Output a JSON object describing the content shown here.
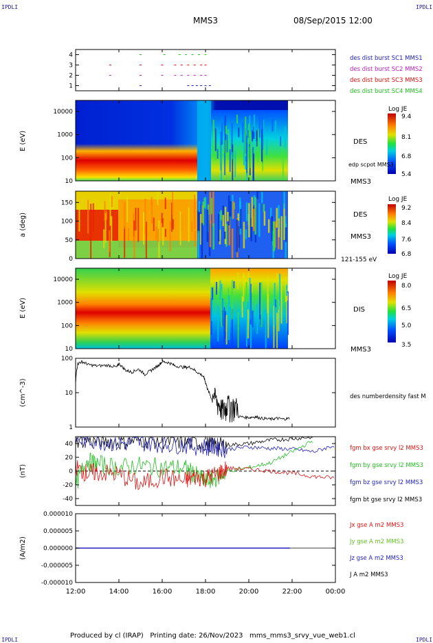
{
  "header": {
    "corner_left": "IPDLI",
    "corner_right": "IPDLI",
    "mission": "MMS3",
    "date": "08/Sep/2015 12:00"
  },
  "footer": {
    "corner_left": "IPDLI",
    "corner_right": "IPDLI",
    "text": "Produced by cl (IRAP)   Printing date: 26/Nov/2023   mms_mms3_srvy_vue_web1.cl"
  },
  "x_axis": {
    "ticks": [
      "12:00",
      "14:00",
      "16:00",
      "18:00",
      "20:00",
      "22:00",
      "00:00"
    ],
    "start_hour": 12,
    "end_hour": 24
  },
  "colors": {
    "blue": "#2020c0",
    "magenta": "#c020c0",
    "red": "#e01010",
    "green": "#20c020",
    "black": "#000000"
  },
  "chart_data": [
    {
      "type": "scatter",
      "panel": "burst",
      "yticks": [
        "1",
        "2",
        "3",
        "4"
      ],
      "ylim": [
        0.5,
        4.5
      ],
      "legend": [
        "des dist burst SC1 MMS1",
        "des dist burst SC2 MMS2",
        "des dist burst SC3 MMS3",
        "des dist burst SC4 MMS4"
      ],
      "series": [
        {
          "level": 1,
          "times": [
            15.0,
            17.2,
            17.4,
            17.6,
            17.8,
            18.0,
            18.2
          ]
        },
        {
          "level": 2,
          "times": [
            13.6,
            15.0,
            16.0,
            16.6,
            16.9,
            17.2,
            17.5,
            17.8,
            18.0
          ]
        },
        {
          "level": 3,
          "times": [
            13.6,
            15.0,
            16.0,
            16.6,
            16.9,
            17.2,
            17.5,
            17.8,
            18.0
          ]
        },
        {
          "level": 4,
          "times": [
            15.0,
            16.1,
            16.8,
            17.1,
            17.4,
            17.7,
            18.0
          ]
        }
      ]
    },
    {
      "type": "heatmap",
      "panel": "des_energy",
      "ylabel": "E (eV)",
      "yticks": [
        "10",
        "100",
        "1000",
        "10000"
      ],
      "ylim": [
        10,
        30000
      ],
      "scale": "log",
      "label": "DES",
      "label2": "MMS3",
      "note": "edp scpot MMS3",
      "colorbar_title": "Log JE",
      "colorbar_ticks": [
        "9.4",
        "8.1",
        "6.8",
        "5.4"
      ],
      "data_end_hour": 21.9
    },
    {
      "type": "heatmap",
      "panel": "des_pitch",
      "ylabel": "a (deg)",
      "yticks": [
        "0",
        "50",
        "100",
        "150"
      ],
      "ylim": [
        0,
        180
      ],
      "label": "DES",
      "label2": "MMS3",
      "note": "121-155 eV",
      "colorbar_title": "Log JE",
      "colorbar_ticks": [
        "9.2",
        "8.4",
        "7.6",
        "6.8"
      ],
      "data_end_hour": 21.9
    },
    {
      "type": "heatmap",
      "panel": "dis_energy",
      "ylabel": "E (eV)",
      "yticks": [
        "10",
        "100",
        "1000",
        "10000"
      ],
      "ylim": [
        10,
        30000
      ],
      "scale": "log",
      "label": "DIS",
      "label2": "MMS3",
      "colorbar_title": "Log JE",
      "colorbar_ticks": [
        "8.0",
        "6.5",
        "5.0",
        "3.5"
      ],
      "data_end_hour": 21.9
    },
    {
      "type": "line",
      "panel": "density",
      "ylabel": "(cm^-3)",
      "yticks": [
        "1",
        "10",
        "100"
      ],
      "ylim": [
        1,
        100
      ],
      "scale": "log",
      "legend": [
        "des numberdensity fast M"
      ],
      "x": [
        12.0,
        12.1,
        12.3,
        12.6,
        13.0,
        13.5,
        13.9,
        14.0,
        14.3,
        14.6,
        14.9,
        15.2,
        15.5,
        15.8,
        16.0,
        16.3,
        16.6,
        17.0,
        17.3,
        17.6,
        17.9,
        18.0,
        18.1,
        18.3,
        18.5,
        18.7,
        18.9,
        19.0,
        19.3,
        19.6,
        20.0,
        20.3,
        20.6,
        21.0,
        21.3,
        21.6,
        21.9
      ],
      "y": [
        18,
        70,
        80,
        65,
        60,
        63,
        55,
        70,
        45,
        40,
        48,
        34,
        45,
        60,
        80,
        75,
        60,
        55,
        55,
        40,
        30,
        20,
        12,
        6,
        3,
        2,
        1.6,
        2.5,
        2.2,
        2,
        1.9,
        2,
        1.8,
        1.7,
        1.8,
        1.7,
        1.8
      ]
    },
    {
      "type": "line",
      "panel": "fgm",
      "ylabel": "(nT)",
      "yticks": [
        "-40",
        "-20",
        "0",
        "20",
        "40"
      ],
      "ylim": [
        -50,
        50
      ],
      "legend": [
        "fgm bx gse srvy l2 MMS3",
        "fgm by gse srvy l2 MMS3",
        "fgm bz gse srvy l2 MMS3",
        "fgm bt gse srvy l2 MMS3"
      ],
      "series": [
        {
          "name": "fgm bx gse srvy l2 MMS3",
          "x": [
            12.0,
            12.5,
            13.0,
            14.0,
            15.0,
            16.0,
            17.0,
            17.5,
            18.0,
            18.5,
            19.0,
            20.0,
            21.0,
            22.0,
            23.0,
            24.0
          ],
          "y": [
            5,
            -3,
            -2,
            -5,
            -20,
            -8,
            -15,
            -8,
            -10,
            -5,
            4,
            3,
            0,
            -3,
            -8,
            -10
          ]
        },
        {
          "name": "fgm by gse srvy l2 MMS3",
          "x": [
            12.0,
            12.5,
            13.0,
            14.0,
            15.0,
            16.0,
            17.0,
            17.5,
            18.0,
            18.5,
            19.0,
            20.0,
            21.0,
            22.0,
            23.0
          ],
          "y": [
            -20,
            15,
            10,
            5,
            8,
            5,
            5,
            -5,
            -15,
            -10,
            0,
            5,
            12,
            28,
            45
          ]
        },
        {
          "name": "fgm bz gse srvy l2 MMS3",
          "x": [
            12.0,
            13.0,
            14.0,
            15.0,
            16.0,
            17.0,
            18.0,
            18.5,
            19.0,
            20.0,
            21.0,
            22.0,
            23.0,
            24.0
          ],
          "y": [
            45,
            45,
            40,
            42,
            40,
            38,
            35,
            35,
            32,
            35,
            33,
            32,
            28,
            38
          ]
        },
        {
          "name": "fgm bt gse srvy l2 MMS3",
          "x": [
            12.0,
            13.0,
            14.0,
            15.0,
            16.0,
            17.0,
            18.0,
            18.5,
            19.0,
            20.0,
            21.0,
            22.0,
            23.0
          ],
          "y": [
            45,
            45,
            42,
            45,
            43,
            42,
            40,
            38,
            38,
            40,
            45,
            47,
            50
          ]
        }
      ]
    },
    {
      "type": "line",
      "panel": "current",
      "ylabel": "(A/m2)",
      "yticks": [
        "-0.000010",
        "-0.000005",
        "0.000000",
        "0.000005",
        "0.000010"
      ],
      "ylim": [
        -1e-05,
        1e-05
      ],
      "legend": [
        "Jx gse A m2 MMS3",
        "Jy gse A m2 MMS3",
        "Jz gse A m2 MMS3",
        "J A m2 MMS3"
      ],
      "x": [
        12.0,
        21.9
      ],
      "y": [
        0,
        0
      ]
    }
  ]
}
